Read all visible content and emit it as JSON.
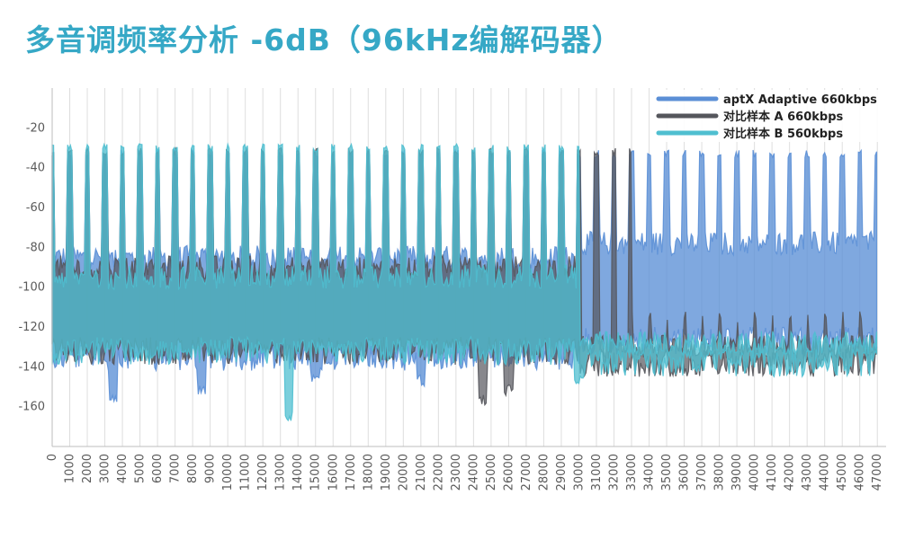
{
  "title": "多音调频率分析 -6dB（96kHz编解码器）",
  "chart_data": {
    "type": "line",
    "title": "多音调频率分析 -6dB（96kHz编解码器）",
    "xlabel": "",
    "ylabel": "",
    "xlim": [
      0,
      47500
    ],
    "ylim": [
      -180,
      0
    ],
    "x_ticks": [
      "0",
      "1000",
      "2000",
      "3000",
      "4000",
      "5000",
      "6000",
      "7000",
      "8000",
      "9000",
      "10000",
      "11000",
      "12000",
      "13000",
      "14000",
      "15000",
      "16000",
      "17000",
      "18000",
      "19000",
      "20000",
      "21000",
      "22000",
      "23000",
      "24000",
      "25000",
      "26000",
      "27000",
      "28000",
      "29000",
      "30000",
      "31000",
      "32000",
      "33000",
      "34000",
      "35000",
      "36000",
      "37000",
      "38000",
      "39000",
      "40000",
      "41000",
      "42000",
      "43000",
      "44000",
      "45000",
      "46000",
      "47000"
    ],
    "y_ticks": [
      -20,
      -40,
      -60,
      -80,
      -100,
      -120,
      -140,
      -160
    ],
    "grid": "vertical",
    "legend_position": "top-right",
    "series": [
      {
        "name": "aptX Adaptive 660kbps",
        "color": "#5b8fd6",
        "tone_peak": -33,
        "tone_range": [
          0,
          47000
        ],
        "tone_spacing": 1000,
        "floor_segments": [
          {
            "x": [
              0,
              30000
            ],
            "top": -85,
            "bottom": -128
          },
          {
            "x": [
              30000,
              47000
            ],
            "top": -78,
            "bottom": -120
          }
        ],
        "min_dips": [
          {
            "x": 3500,
            "y": -160
          },
          {
            "x": 8500,
            "y": -155
          },
          {
            "x": 15000,
            "y": -150
          },
          {
            "x": 21000,
            "y": -150
          }
        ],
        "tail_tone_peak": -72
      },
      {
        "name": "对比样本 A 660kbps",
        "color": "#55565c",
        "tone_peak": -32,
        "tone_range": [
          0,
          33000
        ],
        "tone_spacing": 1000,
        "floor_segments": [
          {
            "x": [
              0,
              30000
            ],
            "top": -90,
            "bottom": -125
          },
          {
            "x": [
              30000,
              47000
            ],
            "top": -130,
            "bottom": -131
          }
        ],
        "min_dips": [
          {
            "x": 24500,
            "y": -160
          },
          {
            "x": 26000,
            "y": -155
          }
        ],
        "sparse_tones_after": {
          "start": 33000,
          "end": 47000,
          "peak": -115
        }
      },
      {
        "name": "对比样本 B 560kbps",
        "color": "#4fbfd0",
        "tone_peak": -30,
        "tone_range": [
          0,
          30000
        ],
        "tone_spacing": 1000,
        "floor_segments": [
          {
            "x": [
              0,
              30000
            ],
            "top": -95,
            "bottom": -125
          },
          {
            "x": [
              30000,
              47000
            ],
            "top": -128,
            "bottom": -131
          }
        ],
        "min_dips": [
          {
            "x": 13500,
            "y": -168
          },
          {
            "x": 30000,
            "y": -150
          }
        ]
      }
    ]
  }
}
